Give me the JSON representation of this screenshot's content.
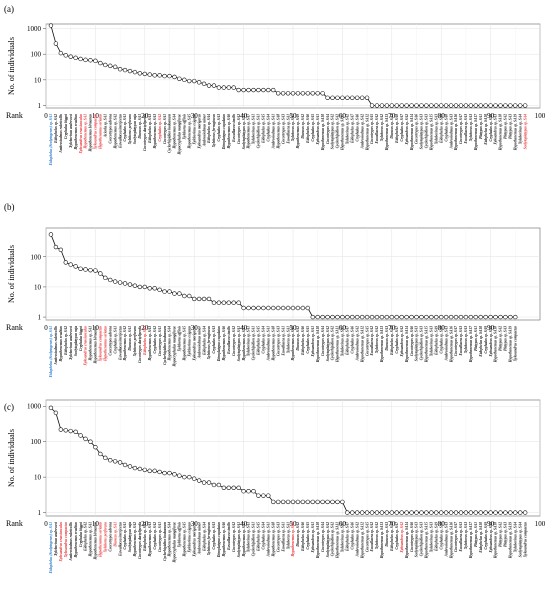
{
  "chart_data": [
    {
      "type": "scatter",
      "panel_label": "(a)",
      "ylabel": "No. of individuals",
      "xlabel": "Rank",
      "y_scale": "log",
      "xlim": [
        0,
        100
      ],
      "ylim": [
        0.8,
        1500
      ],
      "x_ticks": [
        "0",
        "10",
        "20",
        "30",
        "40",
        "50",
        "60",
        "70",
        "80",
        "90",
        "100"
      ],
      "y_ticks": [
        "1",
        "10",
        "100",
        "1000"
      ],
      "grid": true,
      "values": [
        1300,
        260,
        110,
        90,
        80,
        72,
        65,
        60,
        58,
        55,
        45,
        38,
        35,
        32,
        26,
        24,
        22,
        20,
        18,
        17,
        16,
        15,
        15,
        14,
        14,
        13,
        11,
        10,
        9,
        9,
        8,
        7,
        6,
        6,
        5,
        5,
        5,
        5,
        4,
        4,
        4,
        4,
        4,
        4,
        4,
        4,
        3,
        3,
        3,
        3,
        3,
        3,
        3,
        3,
        3,
        3,
        2,
        2,
        2,
        2,
        2,
        2,
        2,
        2,
        2,
        1,
        1,
        1,
        1,
        1,
        1,
        1,
        1,
        1,
        1,
        1,
        1,
        1,
        1,
        1,
        1,
        1,
        1,
        1,
        1,
        1,
        1,
        1,
        1,
        1,
        1,
        1,
        1,
        1,
        1,
        1,
        1
      ],
      "categories": [
        "Eidophelus (Scolytogenes) sp. SA1",
        "Eidophelus sp. SA2",
        "Ambrosiodmus rubricollis",
        "Cryphalus biggsi",
        "Xyleborinus andrewesi",
        "Hypothenemus eruditus",
        "Xylosandrus crassiusculus",
        "Hypothenemus sp. SA1",
        "Hypothenemus birmanus",
        "Xylosandrus compactus",
        "Hypothenemus seriatus",
        "Acicola sp. SA1",
        "Coccotrypes advena",
        "Hypothenemus sp. SA2",
        "Euwallacea interjectus",
        "Cryphalus sp. SA1",
        "Xyleborus perforans",
        "Scolytoplatypus raja",
        "Diuncus sp. SA1",
        "Coccotrypes dactyliperda",
        "Eidophelus sp. SA3",
        "Hypothenemus sp. SA3",
        "Cryphalus sp. SA2",
        "Coccotrypes sp. SA1",
        "Cyclorhipidion bodoanum",
        "Hypothenemus sp. SA4",
        "Hypocryphalus mangiferae",
        "Xyleborus affinis",
        "Hypothenemus sp. SA5",
        "Xyleborinus exiguus",
        "Xylosandrus morigerus",
        "Ambrosiodmus minor",
        "Eidophelus sp. SA4",
        "Xyleborus ferrugineus",
        "Cryphalus sp. SA3",
        "Dinoplatypus cupulatus",
        "Hypothenemus sp. SA6",
        "Euwallacea similis",
        "Coccotrypes sp. SA2",
        "Scolytoplatypus sp. SA1",
        "Hypothenemus sp. SA7",
        "Xyleborinus sp. SA1",
        "Cyclorhipidion sp. SA1",
        "Eidophelus sp. SA5",
        "Cryphalus sp. SA4",
        "Ambrosiodmus sp. SA1",
        "Hypothenemus sp. SA8",
        "Coccotrypes sp. SA3",
        "Euwallacea sp. SA1",
        "Xyleborus sp. SA1",
        "Hypothenemus sp. SA9",
        "Diuncus sp. SA2",
        "Eidophelus sp. SA6",
        "Cryphalus sp. SA5",
        "Xylosandrus sp. SA1",
        "Hypothenemus sp. SA10",
        "Coccotrypes sp. SA4",
        "Scolytoplatypus sp. SA2",
        "Cyclorhipidion sp. SA2",
        "Hypothenemus sp. SA11",
        "Xyleborinus sp. SA2",
        "Eidophelus sp. SA7",
        "Cryphalus sp. SA6",
        "Ambrosiodmus sp. SA2",
        "Hypothenemus sp. SA12",
        "Coccotrypes sp. SA5",
        "Euwallacea sp. SA2",
        "Xyleborus sp. SA2",
        "Hypothenemus sp. SA13",
        "Diuncus sp. SA3",
        "Eidophelus sp. SA8",
        "Cryphalus sp. SA7",
        "Xylosandrus sp. SA2",
        "Hypothenemus sp. SA14",
        "Coccotrypes sp. SA6",
        "Scolytoplatypus sp. SA3",
        "Cyclorhipidion sp. SA3",
        "Hypothenemus sp. SA15",
        "Xyleborinus sp. SA3",
        "Eidophelus sp. SA9",
        "Cryphalus sp. SA8",
        "Ambrosiodmus sp. SA3",
        "Hypothenemus sp. SA16",
        "Coccotrypes sp. SA7",
        "Euwallacea sp. SA3",
        "Xyleborus sp. SA3",
        "Hypothenemus sp. SA17",
        "Platypus sp. SA1",
        "Eidophelus sp. SA10",
        "Cryphalus sp. SA9",
        "Xylosandrus sp. SA3",
        "Hypothenemus sp. SA18",
        "Platypus sp. SA2",
        "Platypus sp. SA3",
        "Hypothenemus sp. SA19",
        "Xyleborinus sp. SA4",
        "Scolytoplatypus sp. SA4"
      ],
      "label_colors": {
        "0": "#1e73c8",
        "6": "#e8262a",
        "7": "#e8262a",
        "9": "#e8262a",
        "10": "#e8262a",
        "22": "#e8262a",
        "96": "#e8262a"
      }
    },
    {
      "type": "scatter",
      "panel_label": "(b)",
      "ylabel": "No. of individuals",
      "xlabel": "Rank",
      "y_scale": "log",
      "xlim": [
        0,
        100
      ],
      "ylim": [
        0.8,
        900
      ],
      "x_ticks": [
        "0",
        "10",
        "20",
        "30",
        "40",
        "50",
        "60",
        "70",
        "80",
        "90"
      ],
      "y_ticks": [
        "1",
        "10",
        "100"
      ],
      "grid": true,
      "values": [
        550,
        210,
        170,
        65,
        55,
        48,
        40,
        38,
        36,
        35,
        28,
        20,
        17,
        15,
        14,
        13,
        12,
        11,
        10,
        10,
        9,
        9,
        8,
        7,
        7,
        6,
        6,
        5,
        5,
        4,
        4,
        4,
        4,
        3,
        3,
        3,
        3,
        3,
        3,
        2,
        2,
        2,
        2,
        2,
        2,
        2,
        2,
        2,
        2,
        2,
        2,
        2,
        2,
        1,
        1,
        1,
        1,
        1,
        1,
        1,
        1,
        1,
        1,
        1,
        1,
        1,
        1,
        1,
        1,
        1,
        1,
        1,
        1,
        1,
        1,
        1,
        1,
        1,
        1,
        1,
        1,
        1,
        1,
        1,
        1,
        1,
        1,
        1,
        1,
        1,
        1,
        1,
        1,
        1,
        1
      ],
      "categories": [
        "Eidophelus (Scolytogenes) sp. SA1",
        "Ambrosiodmus rubricollis",
        "Hypothenemus eruditus",
        "Eidophelus sp. SA2",
        "Xyleborinus andrewesi",
        "Scolytoplatypus raja",
        "Cryphalus biggsi",
        "Xylosandrus crassiusculus",
        "Hypothenemus sp. SA1",
        "Hypothenemus birmanus",
        "Xylosandrus compactus",
        "Hypothenemus seriatus",
        "Coccotrypes advena",
        "Cryphalus sp. SA1",
        "Euwallacea interjectus",
        "Hypothenemus sp. SA2",
        "Diuncus sp. SA1",
        "Xyleborus perforans",
        "Coccotrypes dactyliperda",
        "Eidophelus sp. SA3",
        "Hypothenemus sp. SA3",
        "Cryphalus sp. SA2",
        "Coccotrypes sp. SA1",
        "Cyclorhipidion bodoanum",
        "Hypothenemus sp. SA4",
        "Hypocryphalus mangiferae",
        "Xyleborus affinis",
        "Hypothenemus sp. SA5",
        "Xyleborinus exiguus",
        "Xylosandrus morigerus",
        "Ambrosiodmus minor",
        "Eidophelus sp. SA4",
        "Xyleborus ferrugineus",
        "Cryphalus sp. SA3",
        "Dinoplatypus cupulatus",
        "Hypothenemus sp. SA6",
        "Euwallacea similis",
        "Coccotrypes sp. SA2",
        "Scolytoplatypus sp. SA1",
        "Hypothenemus sp. SA7",
        "Xyleborinus sp. SA1",
        "Cyclorhipidion sp. SA1",
        "Eidophelus sp. SA5",
        "Cryphalus sp. SA4",
        "Ambrosiodmus sp. SA1",
        "Hypothenemus sp. SA8",
        "Coccotrypes sp. SA3",
        "Euwallacea sp. SA1",
        "Xyleborus sp. SA1",
        "Hypothenemus sp. SA9",
        "Diuncus sp. SA2",
        "Eidophelus sp. SA6",
        "Cryphalus sp. SA5",
        "Xylosandrus sp. SA1",
        "Hypothenemus sp. SA10",
        "Coccotrypes sp. SA4",
        "Scolytoplatypus sp. SA2",
        "Cyclorhipidion sp. SA2",
        "Hypothenemus sp. SA11",
        "Xyleborinus sp. SA2",
        "Eidophelus sp. SA7",
        "Cryphalus sp. SA6",
        "Ambrosiodmus sp. SA2",
        "Hypothenemus sp. SA12",
        "Coccotrypes sp. SA5",
        "Euwallacea sp. SA2",
        "Xyleborus sp. SA2",
        "Hypothenemus sp. SA13",
        "Diuncus sp. SA3",
        "Eidophelus sp. SA8",
        "Cryphalus sp. SA7",
        "Xylosandrus sp. SA2",
        "Hypothenemus sp. SA14",
        "Coccotrypes sp. SA6",
        "Scolytoplatypus sp. SA3",
        "Cyclorhipidion sp. SA3",
        "Hypothenemus sp. SA15",
        "Xyleborinus sp. SA3",
        "Eidophelus sp. SA9",
        "Cryphalus sp. SA8",
        "Ambrosiodmus sp. SA3",
        "Hypothenemus sp. SA16",
        "Coccotrypes sp. SA7",
        "Euwallacea sp. SA3",
        "Xyleborus sp. SA3",
        "Hypothenemus sp. SA17",
        "Platypus sp. SA1",
        "Eidophelus sp. SA10",
        "Cryphalus sp. SA9",
        "Xylosandrus sp. SA3",
        "Hypothenemus sp. SA18",
        "Platypus sp. SA2",
        "Platypus sp. SA3",
        "Hypothenemus sp. SA19",
        "Xylosandrus compactus"
      ],
      "label_colors": {
        "0": "#1e73c8",
        "7": "#e8262a",
        "10": "#e8262a",
        "11": "#e8262a",
        "19": "#e8262a"
      }
    },
    {
      "type": "scatter",
      "panel_label": "(c)",
      "ylabel": "No. of individuals",
      "xlabel": "Rank",
      "y_scale": "log",
      "xlim": [
        0,
        100
      ],
      "ylim": [
        0.8,
        1500
      ],
      "x_ticks": [
        "0",
        "10",
        "20",
        "30",
        "40",
        "50",
        "60",
        "70",
        "80",
        "90",
        "100"
      ],
      "y_ticks": [
        "1",
        "10",
        "100",
        "1000"
      ],
      "grid": true,
      "values": [
        900,
        650,
        220,
        210,
        200,
        190,
        150,
        120,
        100,
        70,
        45,
        35,
        30,
        28,
        26,
        22,
        20,
        18,
        17,
        16,
        15,
        15,
        14,
        13,
        13,
        12,
        11,
        10,
        10,
        9,
        8,
        7,
        7,
        6,
        6,
        5,
        5,
        5,
        5,
        4,
        4,
        4,
        3,
        3,
        3,
        2,
        2,
        2,
        2,
        2,
        2,
        2,
        2,
        2,
        2,
        2,
        2,
        2,
        2,
        2,
        1,
        1,
        1,
        1,
        1,
        1,
        1,
        1,
        1,
        1,
        1,
        1,
        1,
        1,
        1,
        1,
        1,
        1,
        1,
        1,
        1,
        1,
        1,
        1,
        1,
        1,
        1,
        1,
        1,
        1,
        1,
        1,
        1,
        1,
        1,
        1,
        1
      ],
      "categories": [
        "Eidophelus (Scolytogenes) sp. SA1",
        "Xyleborinus andrewesi",
        "Xylosandrus crassiusculus",
        "Xylosandrus compactus",
        "Ambrosiodmus rubricollis",
        "Hypothenemus eruditus",
        "Cryphalus biggsi",
        "Eidophelus sp. SA2",
        "Hypothenemus sp. SA1",
        "Hypothenemus birmanus",
        "Hypothenemus seriatus",
        "Xyleborus perforans",
        "Coccotrypes advena",
        "Diuncus sp. SA1",
        "Euwallacea interjectus",
        "Cryphalus sp. SA1",
        "Scolytoplatypus raja",
        "Hypothenemus sp. SA2",
        "Coccotrypes dactyliperda",
        "Eidophelus sp. SA3",
        "Hypothenemus sp. SA3",
        "Cryphalus sp. SA2",
        "Coccotrypes sp. SA1",
        "Cyclorhipidion bodoanum",
        "Hypothenemus sp. SA4",
        "Hypocryphalus mangiferae",
        "Xyleborus affinis",
        "Hypothenemus sp. SA5",
        "Xyleborinus exiguus",
        "Xylosandrus morigerus",
        "Ambrosiodmus minor",
        "Eidophelus sp. SA4",
        "Xyleborus ferrugineus",
        "Cryphalus sp. SA3",
        "Dinoplatypus cupulatus",
        "Hypothenemus sp. SA6",
        "Euwallacea similis",
        "Coccotrypes sp. SA2",
        "Scolytoplatypus sp. SA1",
        "Hypothenemus sp. SA7",
        "Xyleborinus sp. SA1",
        "Cyclorhipidion sp. SA1",
        "Eidophelus sp. SA5",
        "Cryphalus sp. SA4",
        "Ambrosiodmus sp. SA1",
        "Hypothenemus sp. SA8",
        "Coccotrypes sp. SA3",
        "Euwallacea sp. SA1",
        "Xyleborus sp. SA1",
        "Hypothenemus sp. SA9",
        "Diuncus sp. SA2",
        "Eidophelus sp. SA6",
        "Cryphalus sp. SA5",
        "Xylosandrus sp. SA1",
        "Hypothenemus sp. SA10",
        "Coccotrypes sp. SA4",
        "Scolytoplatypus sp. SA2",
        "Cyclorhipidion sp. SA2",
        "Hypothenemus sp. SA11",
        "Xyleborinus sp. SA2",
        "Eidophelus sp. SA7",
        "Cryphalus sp. SA6",
        "Ambrosiodmus sp. SA2",
        "Hypothenemus sp. SA12",
        "Coccotrypes sp. SA5",
        "Euwallacea sp. SA2",
        "Xyleborus sp. SA2",
        "Hypothenemus sp. SA13",
        "Diuncus sp. SA3",
        "Eidophelus sp. SA8",
        "Cryphalus sp. SA7",
        "Xylosandrus sp. SA2",
        "Hypothenemus sp. SA14",
        "Coccotrypes sp. SA6",
        "Scolytoplatypus sp. SA3",
        "Cyclorhipidion sp. SA3",
        "Hypothenemus sp. SA15",
        "Xyleborinus sp. SA3",
        "Eidophelus sp. SA9",
        "Cryphalus sp. SA8",
        "Ambrosiodmus sp. SA3",
        "Hypothenemus sp. SA16",
        "Coccotrypes sp. SA7",
        "Euwallacea sp. SA3",
        "Xyleborus sp. SA3",
        "Hypothenemus sp. SA17",
        "Platypus sp. SA1",
        "Eidophelus sp. SA10",
        "Cryphalus sp. SA9",
        "Xylosandrus sp. SA3",
        "Hypothenemus sp. SA18",
        "Platypus sp. SA2",
        "Platypus sp. SA3",
        "Hypothenemus sp. SA19",
        "Xyleborinus sp. SA4",
        "Scolytoplatypus sp. SA4",
        "Xylosandrus compactus"
      ],
      "label_colors": {
        "0": "#1e73c8",
        "2": "#e8262a",
        "3": "#e8262a",
        "10": "#e8262a",
        "11": "#e8262a",
        "13": "#e8262a",
        "49": "#e8262a",
        "71": "#e8262a"
      }
    }
  ]
}
